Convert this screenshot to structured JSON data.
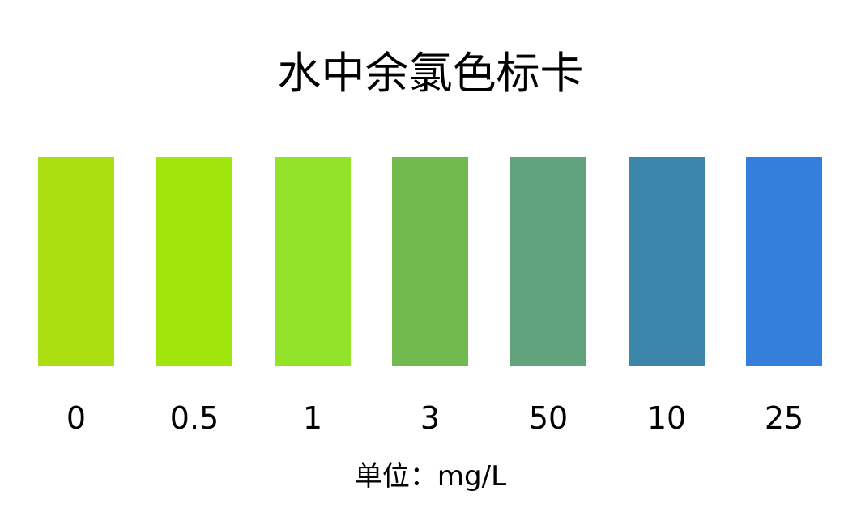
{
  "title": "水中余氯色标卡",
  "swatches": [
    {
      "label": "0",
      "color": "#aade10"
    },
    {
      "label": "0.5",
      "color": "#a0e60c"
    },
    {
      "label": "1",
      "color": "#93e32a"
    },
    {
      "label": "3",
      "color": "#72ba4e"
    },
    {
      "label": "50",
      "color": "#60a37d"
    },
    {
      "label": "10",
      "color": "#3c86ab"
    },
    {
      "label": "25",
      "color": "#357fdc"
    }
  ],
  "unit": "单位：mg/L"
}
